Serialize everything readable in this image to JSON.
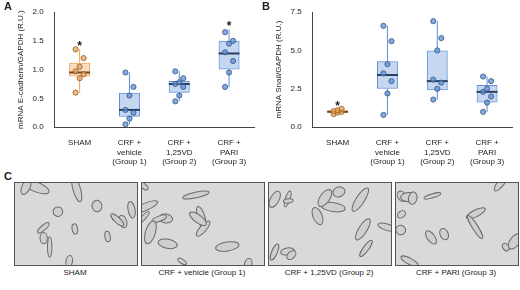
{
  "chart_data": [
    {
      "panel": "A",
      "type": "box",
      "y_label": "mRNA E-cadherin/GAPDH (R.U.)",
      "categories": [
        [
          "SHAM"
        ],
        [
          "CRF +",
          "vehicle",
          "(Group 1)"
        ],
        [
          "CRF +",
          "1,25VD",
          "(Group 2)"
        ],
        [
          "CRF +",
          "PARI",
          "(Group 3)"
        ]
      ],
      "colors": [
        "#f0a050",
        "#5b8fd6",
        "#5b8fd6",
        "#5b8fd6"
      ],
      "boxes": [
        {
          "min": 0.6,
          "q1": 0.88,
          "median": 0.95,
          "q3": 1.12,
          "max": 1.35
        },
        {
          "min": 0.05,
          "q1": 0.18,
          "median": 0.3,
          "q3": 0.6,
          "max": 0.95
        },
        {
          "min": 0.45,
          "q1": 0.6,
          "median": 0.75,
          "q3": 0.8,
          "max": 0.97
        },
        {
          "min": 0.7,
          "q1": 1.0,
          "median": 1.28,
          "q3": 1.5,
          "max": 1.7
        }
      ],
      "points": [
        [
          0.6,
          0.85,
          0.92,
          0.97,
          1.05,
          1.2,
          1.35
        ],
        [
          0.05,
          0.15,
          0.25,
          0.3,
          0.55,
          0.7,
          0.95
        ],
        [
          0.45,
          0.55,
          0.7,
          0.75,
          0.78,
          0.85,
          0.97
        ],
        [
          0.7,
          0.95,
          1.15,
          1.3,
          1.45,
          1.5,
          1.65
        ]
      ],
      "annotations": [
        {
          "text": "*",
          "x": 0,
          "y": 1.45
        },
        {
          "text": "*",
          "x": 3,
          "y": 1.8
        }
      ],
      "ylim": [
        0,
        2.0
      ],
      "yticks": [
        {
          "value": 0,
          "label": "0.0"
        },
        {
          "value": 0.5,
          "label": "0.5"
        },
        {
          "value": 1.0,
          "label": "1.0"
        },
        {
          "value": 1.5,
          "label": "1.5"
        },
        {
          "value": 2.0,
          "label": "2.0"
        }
      ],
      "grid": false
    },
    {
      "panel": "B",
      "type": "box",
      "y_label": "mRNA Snail/GAPDH (R.U.)",
      "categories": [
        [
          "SHAM"
        ],
        [
          "CRF +",
          "vehicle",
          "(Group 1)"
        ],
        [
          "CRF +",
          "1,25VD",
          "(Group 2)"
        ],
        [
          "CRF +",
          "PARI",
          "(Group 3)"
        ]
      ],
      "colors": [
        "#f0a050",
        "#5b8fd6",
        "#5b8fd6",
        "#5b8fd6"
      ],
      "boxes": [
        {
          "min": 0.85,
          "q1": 0.95,
          "median": 1.0,
          "q3": 1.1,
          "max": 1.25
        },
        {
          "min": 0.8,
          "q1": 2.5,
          "median": 3.4,
          "q3": 4.3,
          "max": 6.6
        },
        {
          "min": 1.8,
          "q1": 2.4,
          "median": 3.0,
          "q3": 5.0,
          "max": 6.9
        },
        {
          "min": 1.0,
          "q1": 1.6,
          "median": 2.3,
          "q3": 2.75,
          "max": 3.3
        }
      ],
      "points": [
        [
          0.85,
          0.95,
          1.0,
          1.05,
          1.1,
          1.2
        ],
        [
          0.8,
          2.2,
          3.0,
          3.5,
          4.1,
          5.6,
          6.6
        ],
        [
          1.8,
          2.5,
          2.9,
          3.1,
          5.0,
          5.8,
          6.9
        ],
        [
          1.0,
          1.6,
          2.0,
          2.3,
          2.5,
          3.0,
          3.3
        ]
      ],
      "annotations": [
        {
          "text": "*",
          "x": 0,
          "y": 1.55
        }
      ],
      "ylim": [
        0,
        7.5
      ],
      "yticks": [
        {
          "value": 0,
          "label": "0.0"
        },
        {
          "value": 2.5,
          "label": "2.5"
        },
        {
          "value": 5.0,
          "label": "5.0"
        },
        {
          "value": 7.5,
          "label": "7.5"
        }
      ],
      "grid": false
    }
  ],
  "micrographs": {
    "panel": "C",
    "captions": [
      "SHAM",
      "CRF + vehicle (Group 1)",
      "CRF + 1,25VD (Group 2)",
      "CRF + PARI (Group 3)"
    ]
  }
}
